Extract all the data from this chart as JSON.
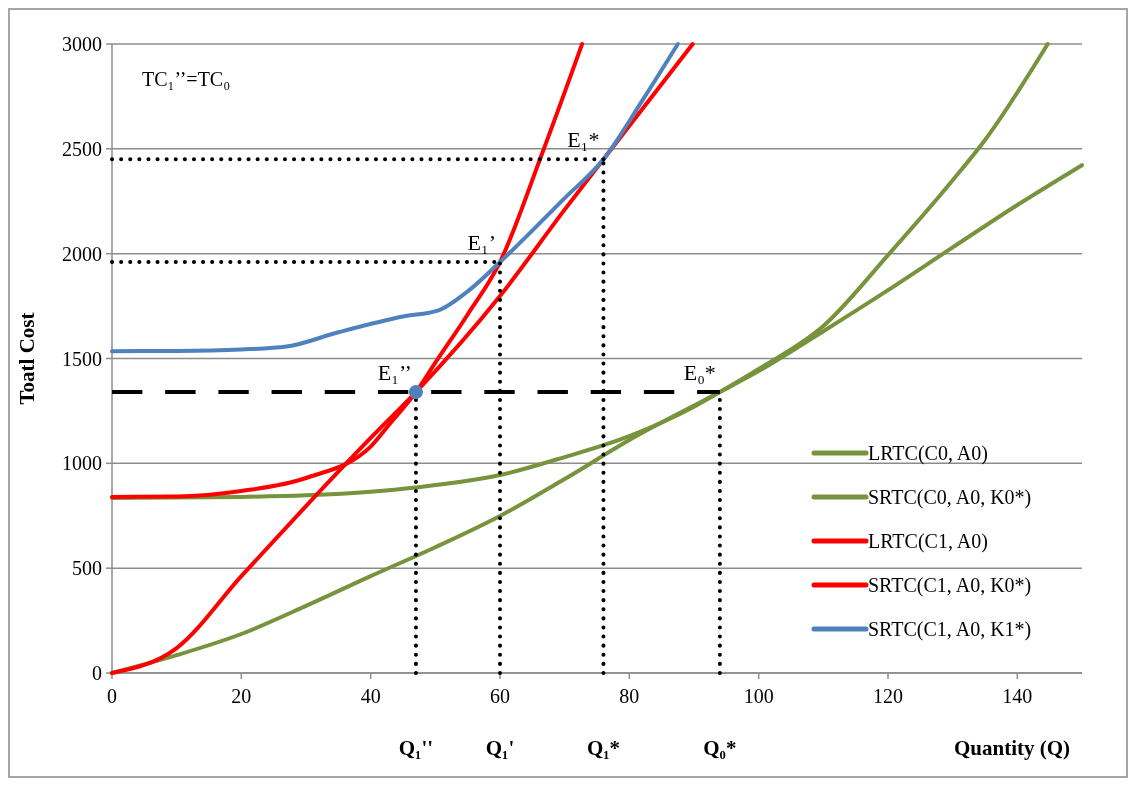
{
  "chart_data": {
    "type": "line",
    "xlabel": "Quantity (Q)",
    "ylabel": "Toatl Cost",
    "xlim": [
      0,
      150
    ],
    "xticks": [
      0,
      20,
      40,
      60,
      80,
      100,
      120,
      140
    ],
    "ylim": [
      0,
      3000
    ],
    "yticks": [
      0,
      500,
      1000,
      1500,
      2000,
      2500,
      3000
    ],
    "grid": "y",
    "legend": "bottom right",
    "marker": "none",
    "series": [
      {
        "name": "LRTC(C0, A0)",
        "color": "#77933c",
        "x": [
          0,
          10,
          20,
          30,
          40,
          50,
          60,
          70,
          80,
          94,
          100,
          110,
          120,
          130,
          140,
          150
        ],
        "values": [
          0,
          85,
          186,
          320,
          462,
          600,
          749,
          925,
          1111,
          1340,
          1440,
          1630,
          1826,
          2030,
          2232,
          2422
        ]
      },
      {
        "name": "SRTC(C0, A0, K0*)",
        "color": "#77933c",
        "x": [
          0,
          10,
          20,
          30,
          40,
          47,
          60,
          70,
          80,
          90,
          94,
          100,
          110,
          120,
          130,
          135,
          144.7
        ],
        "values": [
          835,
          837,
          840,
          848,
          865,
          885,
          944,
          1030,
          1130,
          1270,
          1340,
          1450,
          1655,
          1993,
          2350,
          2542,
          3000
        ]
      },
      {
        "name": "LRTC(C1, A0)",
        "color": "#ff0000",
        "x": [
          0,
          10,
          20,
          30,
          40,
          47,
          60,
          70,
          76,
          89.8
        ],
        "values": [
          0,
          119,
          462,
          796,
          1121,
          1340,
          1798,
          2210,
          2450,
          3000
        ]
      },
      {
        "name": "SRTC(C1, A0, K0*)",
        "color": "#ff0000",
        "x": [
          0,
          10,
          20,
          30,
          40,
          43,
          47,
          50,
          55,
          60,
          66.3,
          72.7
        ],
        "values": [
          840,
          842,
          868,
          930,
          1080,
          1190,
          1340,
          1480,
          1710,
          1960,
          2460,
          3000
        ]
      },
      {
        "name": "SRTC(C1, A0, K1*)",
        "color": "#4f81bd",
        "x": [
          0,
          10,
          20,
          27,
          35,
          45,
          50.6,
          55,
          60,
          70,
          76,
          82,
          87.5
        ],
        "values": [
          1535,
          1536,
          1543,
          1557,
          1625,
          1700,
          1731,
          1820,
          1960,
          2265,
          2450,
          2730,
          3000
        ]
      },
      {
        "color": "#000000",
        "line_style": "dashed",
        "x": [
          0,
          94
        ],
        "values": [
          1340,
          1340
        ]
      },
      {
        "color": "#000000",
        "line_style": "dotted",
        "x": [
          0,
          76
        ],
        "values": [
          2450,
          2450
        ]
      },
      {
        "color": "#000000",
        "line_style": "dotted",
        "x": [
          0,
          60
        ],
        "values": [
          1960,
          1960
        ]
      },
      {
        "color": "#000000",
        "line_style": "dotted",
        "x": [
          47,
          47
        ],
        "values": [
          0,
          1340
        ]
      },
      {
        "color": "#000000",
        "line_style": "dotted",
        "x": [
          60,
          60
        ],
        "values": [
          0,
          1960
        ]
      },
      {
        "color": "#000000",
        "line_style": "dotted",
        "x": [
          76,
          76
        ],
        "values": [
          0,
          2450
        ]
      },
      {
        "color": "#000000",
        "line_style": "dotted",
        "x": [
          94,
          94
        ],
        "values": [
          0,
          1340
        ]
      },
      {
        "type": "scatter",
        "color": "#4f81bd",
        "marker": "circle",
        "x": [
          47
        ],
        "values": [
          1340
        ]
      }
    ],
    "annotations": [
      "TC₁’’=TC₀",
      {
        "text": "E₁*",
        "x": 76,
        "y": 2450
      },
      {
        "text": "E₁’",
        "x": 60,
        "y": 1960
      },
      {
        "text": "E₁’’",
        "x": 47,
        "y": 1340
      },
      {
        "text": "E₀*",
        "x": 94,
        "y": 1340
      },
      "Q₁''",
      "Q₁'",
      "Q₁*",
      "Q₀*"
    ]
  }
}
